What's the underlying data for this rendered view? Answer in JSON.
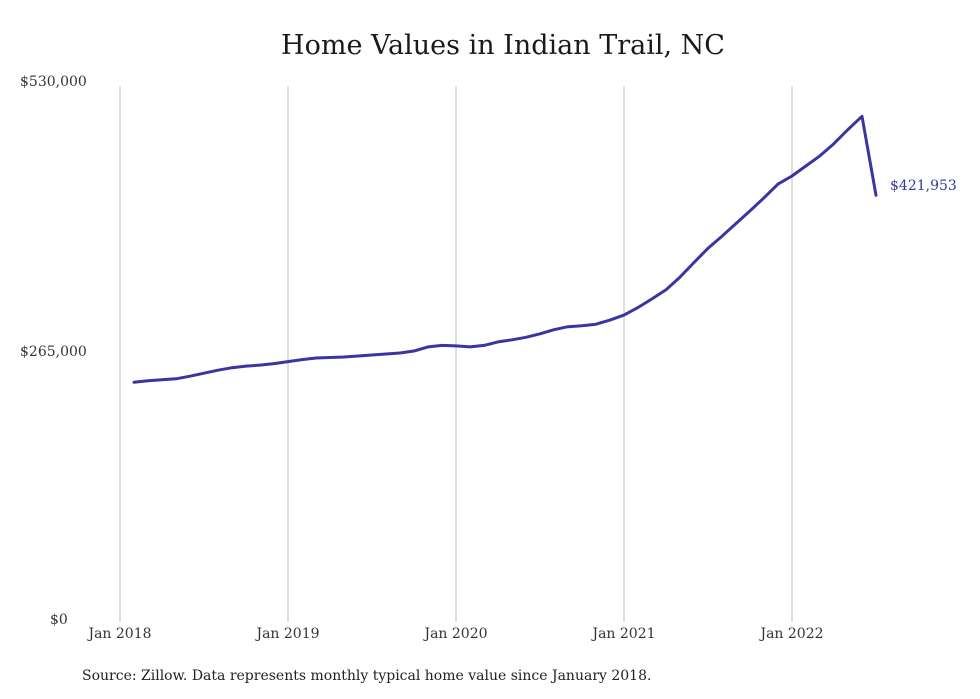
{
  "chart_data": {
    "type": "line",
    "title": "Home Values in Indian Trail, NC",
    "source": "Source: Zillow. Data represents monthly typical home value since January 2018.",
    "ylim": [
      0,
      530000
    ],
    "yticks": [
      "$530,000",
      "$265,000",
      "$0"
    ],
    "xticks": [
      "Jan 2018",
      "Jan 2019",
      "Jan 2020",
      "Jan 2021",
      "Jan 2022"
    ],
    "end_label": "$421,953",
    "line_color": "#3a35a0",
    "grid": "vertical",
    "series": [
      {
        "x": [
          "2018-02",
          "2018-03",
          "2018-04",
          "2018-05",
          "2018-06",
          "2018-07",
          "2018-08",
          "2018-09",
          "2018-10",
          "2018-11",
          "2018-12",
          "2019-01",
          "2019-02",
          "2019-03",
          "2019-04",
          "2019-05",
          "2019-06",
          "2019-07",
          "2019-08",
          "2019-09",
          "2019-10",
          "2019-11",
          "2019-12",
          "2020-01",
          "2020-02",
          "2020-03",
          "2020-04",
          "2020-05",
          "2020-06",
          "2020-07",
          "2020-08",
          "2020-09",
          "2020-10",
          "2020-11",
          "2020-12",
          "2021-01",
          "2021-02",
          "2021-03",
          "2021-04",
          "2021-05",
          "2021-06",
          "2021-07",
          "2021-08",
          "2021-09",
          "2021-10",
          "2021-11",
          "2021-12",
          "2022-01",
          "2022-02",
          "2022-03",
          "2022-04",
          "2022-05",
          "2022-06",
          "2022-07"
        ],
        "values": [
          237000,
          238500,
          239500,
          240500,
          243000,
          246000,
          249000,
          251500,
          253000,
          254000,
          255500,
          257500,
          259500,
          261000,
          261500,
          262000,
          263000,
          264000,
          265000,
          266000,
          268000,
          272000,
          273500,
          273000,
          272000,
          273500,
          277000,
          279000,
          281500,
          285000,
          289000,
          292000,
          293000,
          294500,
          298500,
          303500,
          311000,
          319500,
          328500,
          341000,
          355500,
          369500,
          381500,
          394000,
          406500,
          419500,
          433000,
          441000,
          451000,
          461000,
          473000,
          487000,
          500000,
          421953
        ]
      }
    ]
  }
}
